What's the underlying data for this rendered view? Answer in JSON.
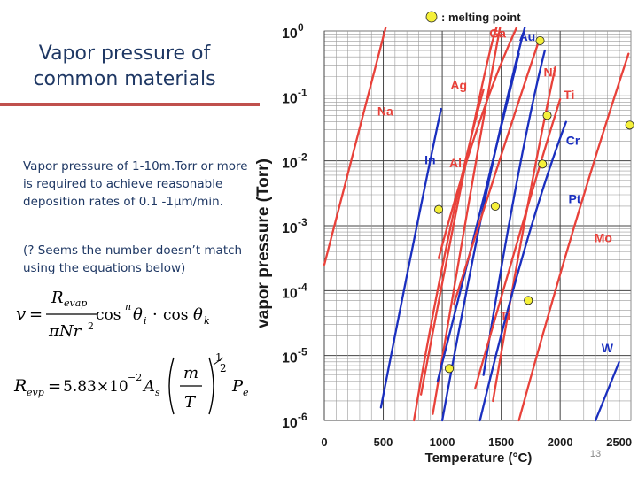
{
  "slide": {
    "title": "Vapor pressure of common materials",
    "paragraph1": "Vapor pressure of 1-10m.Torr or more is required to achieve reasonable deposition rates of 0.1 -1μm/min.",
    "paragraph2": "(? Seems the number doesn’t match using the equations below)",
    "page_number": "13"
  },
  "equations": {
    "v_lhs": "v",
    "v_num": "R",
    "v_num_sub": "evap",
    "v_den": "πNr",
    "v_den_sup": "2",
    "v_rhs": "cos",
    "v_rhs_sup": "n",
    "v_theta_i": "θ",
    "v_theta_i_sub": "i",
    "v_dot": "·",
    "v_cos2": "cos",
    "v_theta_k": "θ",
    "v_theta_k_sub": "k",
    "r_lhs": "R",
    "r_lhs_sub": "evp",
    "r_coef": "5.83×10",
    "r_coef_sup": "−2",
    "r_As": "A",
    "r_As_sub": "s",
    "r_m": "m",
    "r_T": "T",
    "r_exp": "1",
    "r_exp_den": "2",
    "r_P": "P",
    "r_P_sub": "e"
  },
  "chart_data": {
    "type": "line",
    "title": "",
    "xlabel": "Temperature (°C)",
    "ylabel": "vapor pressure (Torr)",
    "xlim": [
      0,
      2600
    ],
    "ylim_exponent": [
      -6,
      0
    ],
    "yscale": "log",
    "x_ticks": [
      "0",
      "500",
      "1000",
      "1500",
      "2000",
      "2500"
    ],
    "y_ticks": [
      {
        "base": "10",
        "exp": "0"
      },
      {
        "base": "10",
        "exp": "-1"
      },
      {
        "base": "10",
        "exp": "-2"
      },
      {
        "base": "10",
        "exp": "-3"
      },
      {
        "base": "10",
        "exp": "-4"
      },
      {
        "base": "10",
        "exp": "-5"
      },
      {
        "base": "10",
        "exp": "-6"
      }
    ],
    "grid": true,
    "legend": {
      "symbol": "yellow-circle",
      "label": ": melting point",
      "placement": "top"
    },
    "colors": {
      "red_series": "#e8413a",
      "blue_series": "#1a2fbf",
      "melting_point": "#f5f03a",
      "axis_text": "#1a1a1a",
      "label_red": "#e8413a",
      "label_blue": "#1a2fbf"
    },
    "series": [
      {
        "name": "Na",
        "color": "red",
        "points": [
          [
            0,
            -3.6
          ],
          [
            520,
            0.05
          ]
        ]
      },
      {
        "name": "Ag",
        "color": "red",
        "points": [
          [
            820,
            -5.6
          ],
          [
            1350,
            -0.5
          ],
          [
            1460,
            0.05
          ]
        ]
      },
      {
        "name": "Ga",
        "color": "red",
        "points": [
          [
            920,
            -5.9
          ],
          [
            1300,
            -1.8
          ],
          [
            1490,
            0.05
          ]
        ]
      },
      {
        "name": "Au",
        "color": "blue",
        "points": [
          [
            1000,
            -6
          ],
          [
            1400,
            -2.0
          ],
          [
            1700,
            0.05
          ]
        ]
      },
      {
        "name": "Ni",
        "color": "blue",
        "points": [
          [
            1350,
            -5.3
          ],
          [
            1650,
            -1.9
          ],
          [
            1870,
            -0.3
          ]
        ]
      },
      {
        "name": "Ti",
        "color": "red",
        "points": [
          [
            1430,
            -5.7
          ],
          [
            1750,
            -2.3
          ],
          [
            1960,
            -0.55
          ]
        ]
      },
      {
        "name": "Cr",
        "color": "red",
        "points": [
          [
            970,
            -3.5
          ],
          [
            1300,
            -1.25
          ],
          [
            1630,
            0.05
          ]
        ]
      },
      {
        "name": "In",
        "color": "blue",
        "points": [
          [
            480,
            -5.8
          ],
          [
            780,
            -3.0
          ],
          [
            990,
            -1.2
          ]
        ]
      },
      {
        "name": "Al",
        "color": "red",
        "points": [
          [
            760,
            -6
          ],
          [
            1050,
            -2.9
          ],
          [
            1350,
            -0.9
          ]
        ]
      },
      {
        "name": "Pt",
        "color": "blue",
        "points": [
          [
            1320,
            -6
          ],
          [
            1700,
            -3.1
          ],
          [
            2050,
            -1.4
          ]
        ]
      },
      {
        "name": "Mo",
        "color": "red",
        "points": [
          [
            1650,
            -6
          ],
          [
            2100,
            -3.0
          ],
          [
            2580,
            -0.35
          ]
        ]
      },
      {
        "name": "W",
        "color": "blue",
        "points": [
          [
            2300,
            -6
          ],
          [
            2500,
            -5.1
          ]
        ]
      },
      {
        "name": "",
        "color": "blue",
        "points": [
          [
            960,
            -5.4
          ],
          [
            1420,
            -2.1
          ],
          [
            1650,
            -0.35
          ]
        ]
      },
      {
        "name": "",
        "color": "red",
        "points": [
          [
            1280,
            -5.5
          ],
          [
            1750,
            -2.5
          ],
          [
            2000,
            -1.05
          ]
        ]
      },
      {
        "name": "",
        "color": "red",
        "points": [
          [
            1100,
            -4.2
          ],
          [
            1550,
            -1.6
          ],
          [
            1820,
            -0.15
          ]
        ]
      }
    ],
    "melting_points": [
      [
        970,
        -2.75
      ],
      [
        1060,
        -5.2
      ],
      [
        1450,
        -2.7
      ],
      [
        1730,
        -4.15
      ],
      [
        1850,
        -2.05
      ],
      [
        1890,
        -1.3
      ],
      [
        2590,
        -1.45
      ],
      [
        1830,
        -0.15
      ]
    ],
    "series_labels": [
      {
        "name": "Na",
        "x": 450,
        "y": -1.3,
        "color": "red"
      },
      {
        "name": "Ag",
        "x": 1070,
        "y": -0.9,
        "color": "red"
      },
      {
        "name": "Ga",
        "x": 1400,
        "y": -0.1,
        "color": "red"
      },
      {
        "name": "Au",
        "x": 1650,
        "y": -0.15,
        "color": "blue"
      },
      {
        "name": "Ni",
        "x": 1860,
        "y": -0.7,
        "color": "red"
      },
      {
        "name": "Ti",
        "x": 2030,
        "y": -1.05,
        "color": "red"
      },
      {
        "name": "Cr",
        "x": 2050,
        "y": -1.75,
        "color": "blue"
      },
      {
        "name": "In",
        "x": 850,
        "y": -2.05,
        "color": "blue"
      },
      {
        "name": "Al",
        "x": 1060,
        "y": -2.1,
        "color": "red"
      },
      {
        "name": "Pt",
        "x": 2070,
        "y": -2.65,
        "color": "blue"
      },
      {
        "name": "Mo",
        "x": 2290,
        "y": -3.25,
        "color": "red"
      },
      {
        "name": "Ti",
        "x": 1490,
        "y": -4.45,
        "color": "red"
      },
      {
        "name": "W",
        "x": 2350,
        "y": -4.95,
        "color": "blue"
      }
    ]
  }
}
